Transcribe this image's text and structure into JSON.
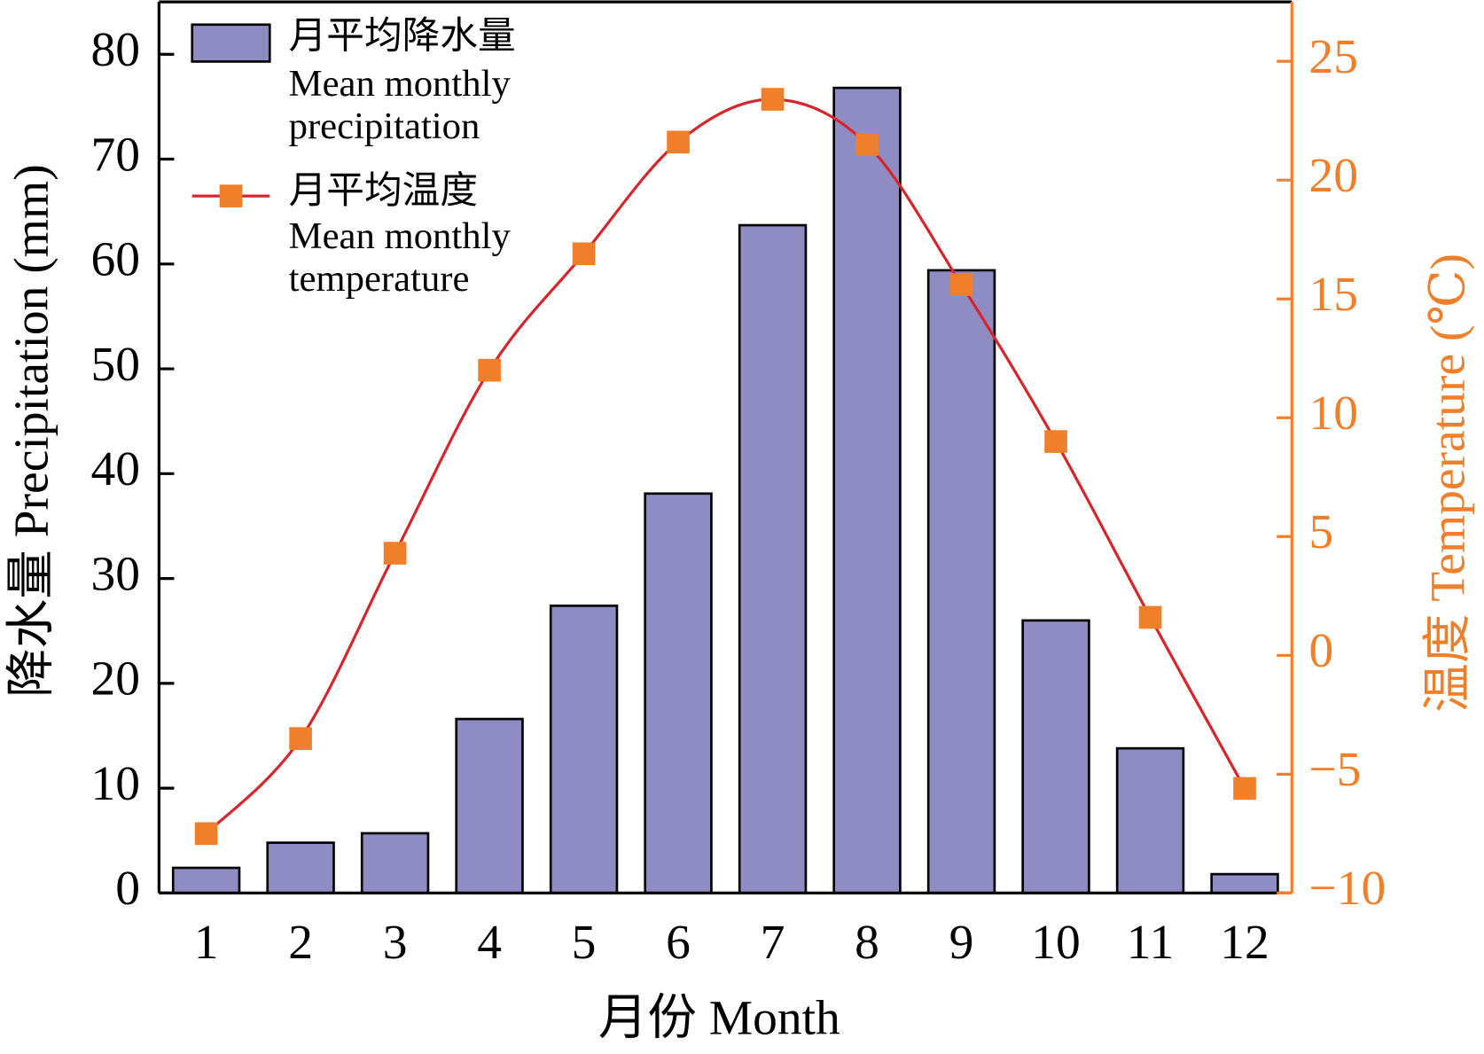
{
  "chart_data": {
    "type": "bar_line",
    "xlabel": "月份 Month",
    "ylabel": "降水量 Precipitation (mm)",
    "y2label": "温度 Temperature (℃)",
    "categories": [
      "1",
      "2",
      "3",
      "4",
      "5",
      "6",
      "7",
      "8",
      "9",
      "10",
      "11",
      "12"
    ],
    "series": [
      {
        "name": [
          "月平均降水量",
          "Mean monthly",
          "precipitation"
        ],
        "type": "bar",
        "color": "#8f8bc3",
        "values": [
          2.4,
          4.8,
          5.7,
          16.6,
          27.4,
          38.1,
          63.7,
          76.8,
          59.4,
          26.0,
          13.8,
          1.8
        ]
      },
      {
        "name": [
          "月平均温度",
          "Mean monthly",
          "temperature"
        ],
        "type": "line",
        "axis": "y2",
        "color": "#d7262b",
        "marker_color": "#f07f2b",
        "values": [
          -7.5,
          -3.5,
          4.3,
          12.0,
          16.9,
          21.6,
          23.4,
          21.5,
          15.6,
          9.0,
          1.6,
          -5.6
        ]
      }
    ],
    "ylim": [
      0,
      85
    ],
    "yticks": [
      0,
      10,
      20,
      30,
      40,
      50,
      60,
      70,
      80
    ],
    "y2lim": [
      -10,
      27.5
    ],
    "y2ticks": [
      {
        "value": -10,
        "label": "−10"
      },
      {
        "value": -5,
        "label": "−5"
      },
      0,
      5,
      10,
      15,
      20,
      25
    ],
    "y2color": "#f07f2b",
    "legend": "upper left"
  }
}
